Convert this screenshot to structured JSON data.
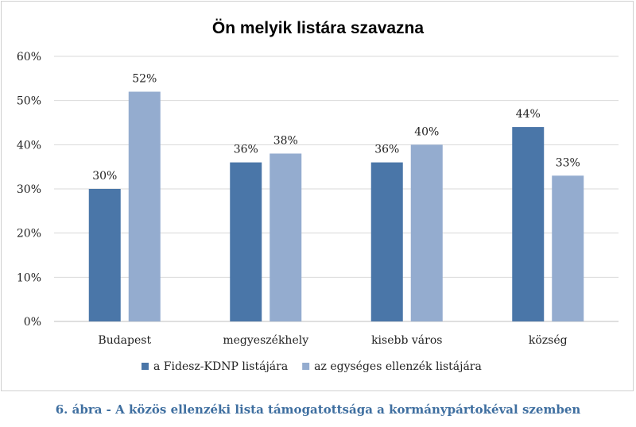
{
  "chart_data": {
    "type": "bar",
    "title": "Ön melyik listára szavazna",
    "categories": [
      "Budapest",
      "megyeszékhely",
      "kisebb város",
      "község"
    ],
    "series": [
      {
        "name": "a Fidesz-KDNP listájára",
        "values": [
          30,
          36,
          36,
          44
        ],
        "labels": [
          "30%",
          "36%",
          "36%",
          "44%"
        ],
        "color": "#4a76a8"
      },
      {
        "name": "az egységes ellenzék listájára",
        "values": [
          52,
          38,
          40,
          33
        ],
        "labels": [
          "52%",
          "38%",
          "40%",
          "33%"
        ],
        "color": "#94accf"
      }
    ],
    "ylim": [
      0,
      60
    ],
    "yticks": [
      "0%",
      "10%",
      "20%",
      "30%",
      "40%",
      "50%",
      "60%"
    ],
    "grid": true,
    "legend": "bottom",
    "xlabel": "",
    "ylabel": ""
  },
  "caption": "6. ábra - A közös ellenzéki lista támogatottsága a kormánypártokéval szemben"
}
